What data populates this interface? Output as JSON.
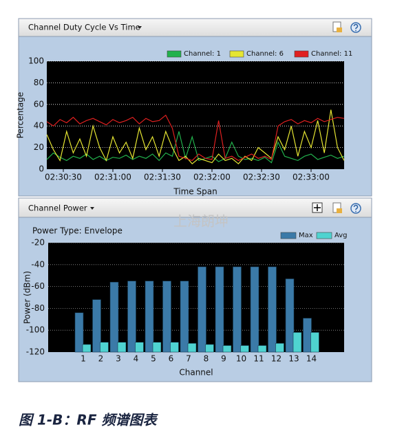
{
  "panels": [
    {
      "title": "Channel Duty Cycle Vs Time"
    },
    {
      "title": "Channel Power"
    }
  ],
  "watermark": "上海朗坤",
  "caption": "图 1-B：RF 频谱图表",
  "chart_data": [
    {
      "type": "line",
      "ylabel": "Percentage",
      "xlabel": "Time Span",
      "x": [
        "02:30:20",
        "02:30:24",
        "02:30:28",
        "02:30:32",
        "02:30:36",
        "02:30:40",
        "02:30:44",
        "02:30:48",
        "02:30:52",
        "02:30:56",
        "02:31:00",
        "02:31:04",
        "02:31:08",
        "02:31:12",
        "02:31:16",
        "02:31:20",
        "02:31:24",
        "02:31:28",
        "02:31:32",
        "02:31:36",
        "02:31:40",
        "02:31:44",
        "02:31:48",
        "02:31:52",
        "02:31:56",
        "02:32:00",
        "02:32:04",
        "02:32:08",
        "02:32:12",
        "02:32:16",
        "02:32:20",
        "02:32:24",
        "02:32:28",
        "02:32:32",
        "02:32:36",
        "02:32:40",
        "02:32:44",
        "02:32:48",
        "02:32:52",
        "02:32:56",
        "02:33:00",
        "02:33:04",
        "02:33:08",
        "02:33:12",
        "02:33:16",
        "02:33:20"
      ],
      "xlim": [
        "02:30:20",
        "02:33:20"
      ],
      "xticks": [
        "02:30:30",
        "02:31:00",
        "02:31:30",
        "02:32:00",
        "02:32:30",
        "02:33:00"
      ],
      "ylim": [
        0,
        100
      ],
      "yticks": [
        0,
        20,
        40,
        60,
        80,
        100
      ],
      "grid": true,
      "series": [
        {
          "name": "Channel: 1",
          "color": "#22b14c",
          "values": [
            9,
            15,
            11,
            8,
            12,
            10,
            14,
            9,
            12,
            8,
            11,
            10,
            13,
            9,
            12,
            10,
            14,
            8,
            15,
            12,
            35,
            10,
            30,
            8,
            10,
            12,
            7,
            10,
            25,
            12,
            9,
            10,
            8,
            11,
            6,
            25,
            12,
            10,
            8,
            12,
            14,
            9,
            11,
            13,
            10,
            12
          ]
        },
        {
          "name": "Channel: 6",
          "color": "#e6e632",
          "values": [
            32,
            18,
            8,
            35,
            15,
            28,
            12,
            40,
            20,
            8,
            30,
            15,
            25,
            10,
            38,
            18,
            30,
            12,
            35,
            20,
            8,
            12,
            5,
            10,
            8,
            6,
            14,
            8,
            10,
            5,
            12,
            8,
            20,
            15,
            10,
            30,
            18,
            40,
            12,
            35,
            20,
            45,
            15,
            55,
            20,
            8
          ]
        },
        {
          "name": "Channel: 11",
          "color": "#e02020",
          "values": [
            44,
            40,
            46,
            43,
            48,
            42,
            45,
            47,
            44,
            41,
            46,
            43,
            45,
            48,
            42,
            47,
            44,
            45,
            50,
            38,
            12,
            10,
            8,
            14,
            10,
            9,
            45,
            10,
            12,
            8,
            11,
            14,
            10,
            12,
            9,
            40,
            44,
            46,
            42,
            45,
            43,
            47,
            44,
            46,
            48,
            47
          ]
        }
      ]
    },
    {
      "type": "bar",
      "subtitle": "Power Type: Envelope",
      "ylabel": "Power (dBm)",
      "xlabel": "Channel",
      "categories": [
        "1",
        "2",
        "3",
        "4",
        "5",
        "6",
        "7",
        "8",
        "9",
        "10",
        "11",
        "12",
        "13",
        "14"
      ],
      "ylim": [
        -120,
        -20
      ],
      "yticks": [
        -20,
        -40,
        -60,
        -80,
        -100,
        -120
      ],
      "grid": true,
      "series": [
        {
          "name": "Max",
          "color": "#3b7aa8",
          "values": [
            -84,
            -72,
            -56,
            -55,
            -55,
            -55,
            -55,
            -42,
            -42,
            -42,
            -42,
            -42,
            -53,
            -89
          ]
        },
        {
          "name": "Avg",
          "color": "#4fd3d0",
          "values": [
            -113,
            -111,
            -111,
            -111,
            -111,
            -111,
            -112,
            -113,
            -114,
            -114,
            -114,
            -112,
            -102,
            -102
          ]
        }
      ]
    }
  ]
}
